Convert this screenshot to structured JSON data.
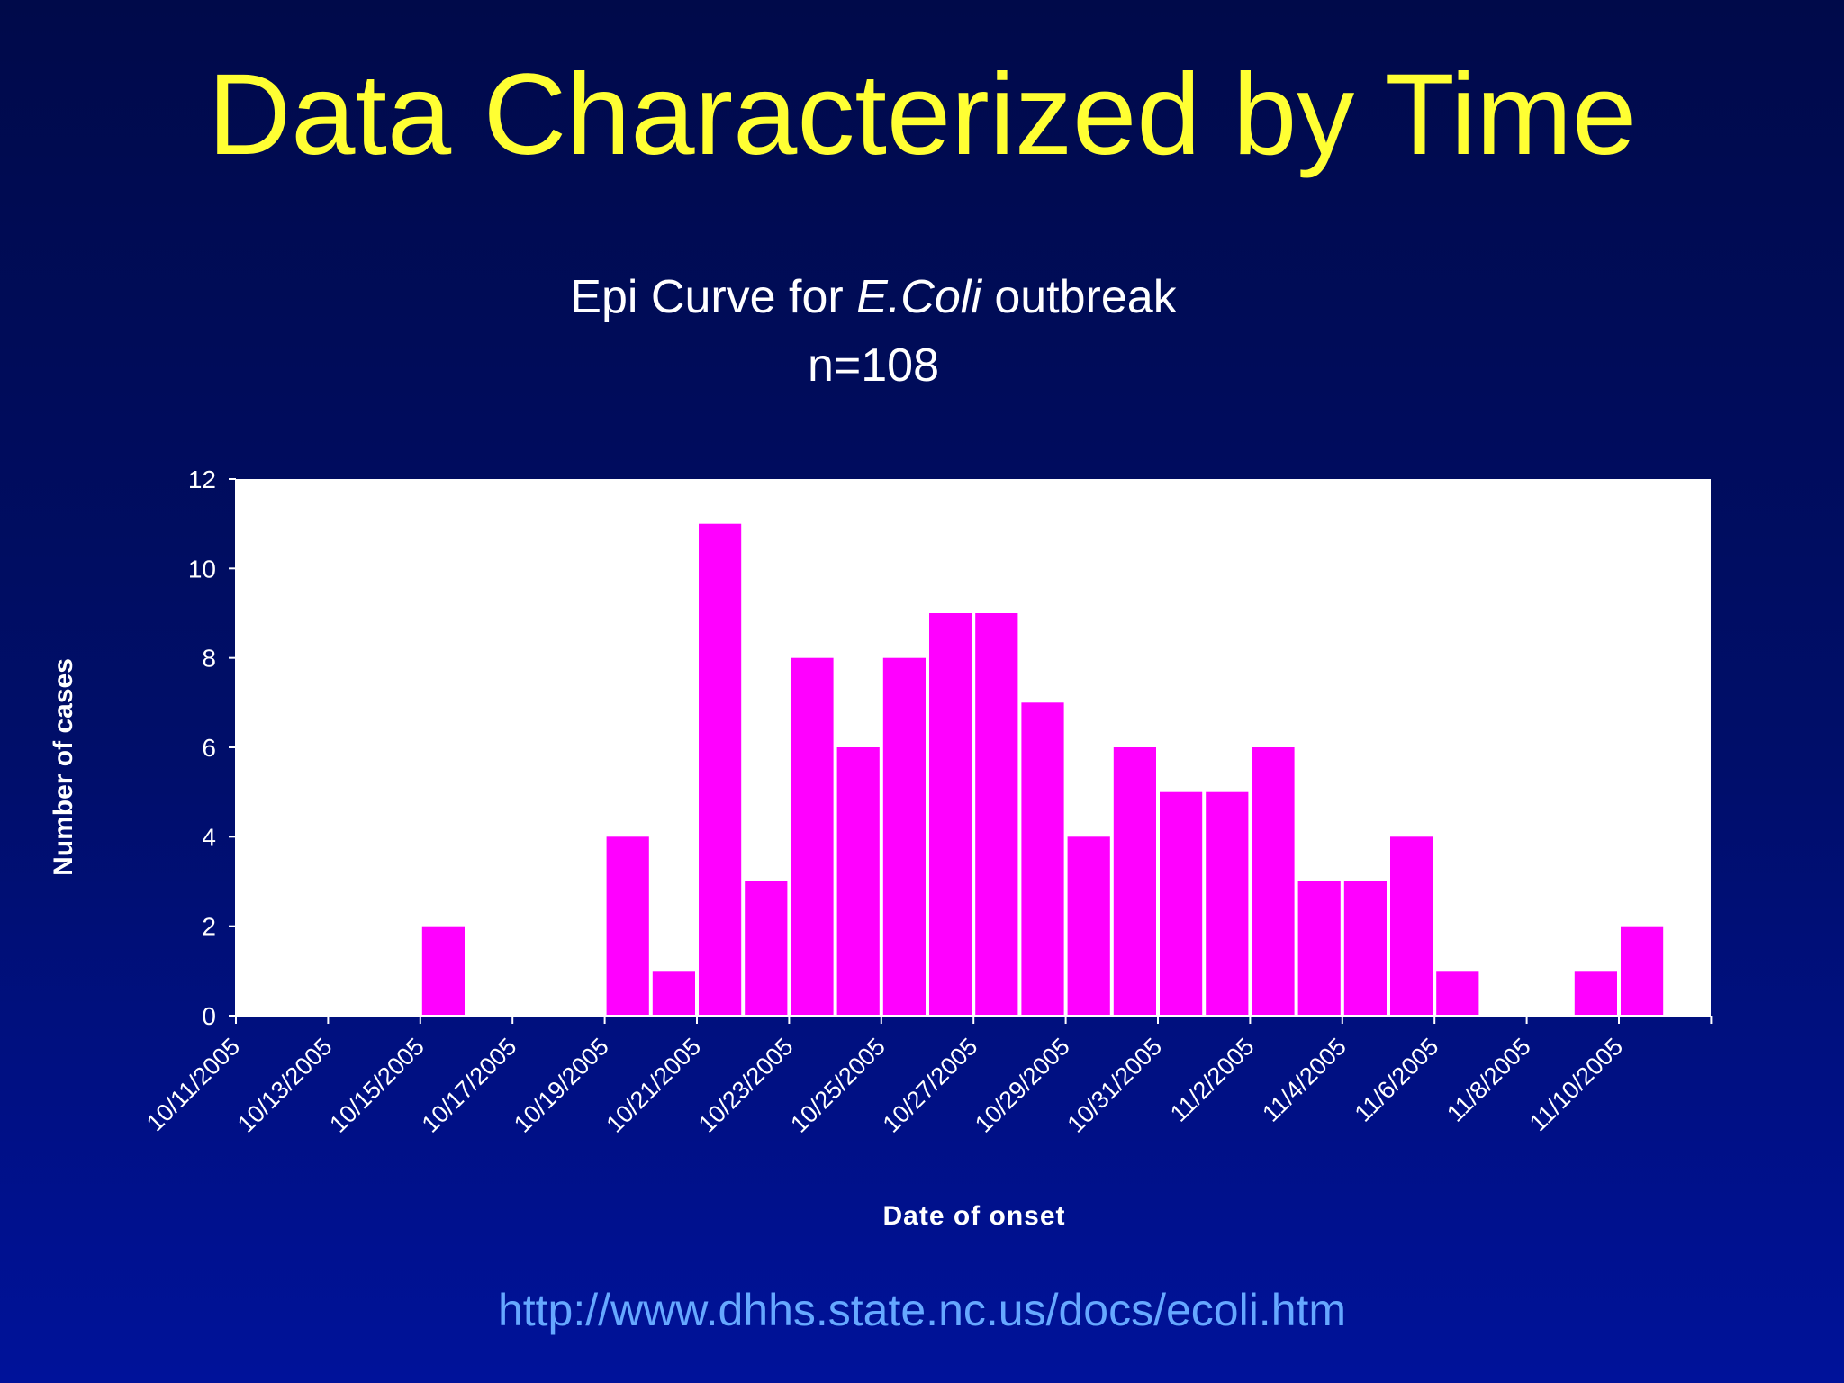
{
  "slide": {
    "title": "Data Characterized by Time",
    "source_url": "http://www.dhhs.state.nc.us/docs/ecoli.htm"
  },
  "colors": {
    "title": "#ffff33",
    "bar": "#ff00ff",
    "plot_background": "#ffffff",
    "text": "#ffffff",
    "link": "#66a8ff"
  },
  "chart_data": {
    "type": "bar",
    "title_prefix": "Epi Curve for ",
    "title_italic": "E.Coli",
    "title_suffix": " outbreak",
    "subtitle": "n=108",
    "xlabel": "Date of onset",
    "ylabel": "Number of cases",
    "ylim": [
      0,
      12
    ],
    "yticks": [
      0,
      2,
      4,
      6,
      8,
      10,
      12
    ],
    "grid": false,
    "legend": "none",
    "tick_labels": [
      "10/11/2005",
      "10/13/2005",
      "10/15/2005",
      "10/17/2005",
      "10/19/2005",
      "10/21/2005",
      "10/23/2005",
      "10/25/2005",
      "10/27/2005",
      "10/29/2005",
      "10/31/2005",
      "11/2/2005",
      "11/4/2005",
      "11/6/2005",
      "11/8/2005",
      "11/10/2005"
    ],
    "categories": [
      "10/11/2005",
      "10/12/2005",
      "10/13/2005",
      "10/14/2005",
      "10/15/2005",
      "10/16/2005",
      "10/17/2005",
      "10/18/2005",
      "10/19/2005",
      "10/20/2005",
      "10/21/2005",
      "10/22/2005",
      "10/23/2005",
      "10/24/2005",
      "10/25/2005",
      "10/26/2005",
      "10/27/2005",
      "10/28/2005",
      "10/29/2005",
      "10/30/2005",
      "10/31/2005",
      "11/1/2005",
      "11/2/2005",
      "11/3/2005",
      "11/4/2005",
      "11/5/2005",
      "11/6/2005",
      "11/7/2005",
      "11/8/2005",
      "11/9/2005",
      "11/10/2005",
      "11/11/2005"
    ],
    "values": [
      0,
      0,
      0,
      0,
      2,
      0,
      0,
      0,
      4,
      1,
      11,
      3,
      8,
      6,
      8,
      9,
      9,
      7,
      4,
      6,
      5,
      5,
      6,
      3,
      3,
      4,
      1,
      0,
      0,
      1,
      2,
      0
    ]
  }
}
